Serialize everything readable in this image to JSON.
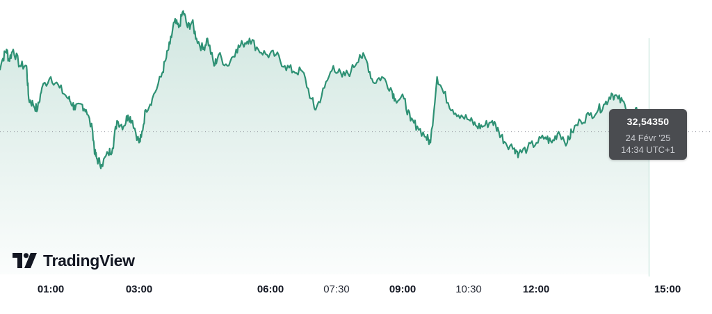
{
  "chart_data": {
    "type": "area",
    "x_ticks": [
      {
        "label": "01:00",
        "bold": true
      },
      {
        "label": "03:00",
        "bold": true
      },
      {
        "label": "06:00",
        "bold": true
      },
      {
        "label": "07:30",
        "bold": false
      },
      {
        "label": "09:00",
        "bold": true
      },
      {
        "label": "10:30",
        "bold": false
      },
      {
        "label": "12:00",
        "bold": true
      },
      {
        "label": "15:00",
        "bold": true
      }
    ],
    "x_range_hours": [
      -0.2,
      15.5
    ],
    "y_range": [
      32.32,
      32.57
    ],
    "reference_value": 32.45,
    "series": [
      {
        "color": "#2e9174",
        "points": [
          [
            -0.2,
            32.505
          ],
          [
            -0.1,
            32.515
          ],
          [
            0.0,
            32.525
          ],
          [
            0.05,
            32.515
          ],
          [
            0.15,
            32.525
          ],
          [
            0.3,
            32.51
          ],
          [
            0.45,
            32.51
          ],
          [
            0.5,
            32.48
          ],
          [
            0.6,
            32.475
          ],
          [
            0.7,
            32.47
          ],
          [
            0.8,
            32.49
          ],
          [
            1.0,
            32.5
          ],
          [
            1.2,
            32.49
          ],
          [
            1.4,
            32.48
          ],
          [
            1.5,
            32.475
          ],
          [
            1.55,
            32.47
          ],
          [
            1.7,
            32.475
          ],
          [
            1.8,
            32.47
          ],
          [
            1.95,
            32.45
          ],
          [
            2.0,
            32.43
          ],
          [
            2.05,
            32.425
          ],
          [
            2.15,
            32.42
          ],
          [
            2.3,
            32.43
          ],
          [
            2.4,
            32.435
          ],
          [
            2.5,
            32.46
          ],
          [
            2.65,
            32.455
          ],
          [
            2.75,
            32.465
          ],
          [
            2.85,
            32.46
          ],
          [
            3.0,
            32.44
          ],
          [
            3.05,
            32.445
          ],
          [
            3.15,
            32.47
          ],
          [
            3.3,
            32.48
          ],
          [
            3.5,
            32.5
          ],
          [
            3.6,
            32.515
          ],
          [
            3.7,
            32.53
          ],
          [
            3.8,
            32.55
          ],
          [
            3.9,
            32.545
          ],
          [
            4.0,
            32.56
          ],
          [
            4.1,
            32.545
          ],
          [
            4.2,
            32.55
          ],
          [
            4.3,
            32.535
          ],
          [
            4.45,
            32.525
          ],
          [
            4.55,
            32.535
          ],
          [
            4.7,
            32.51
          ],
          [
            4.8,
            32.52
          ],
          [
            5.0,
            32.51
          ],
          [
            5.2,
            32.525
          ],
          [
            5.35,
            32.53
          ],
          [
            5.5,
            32.535
          ],
          [
            5.7,
            32.525
          ],
          [
            5.9,
            32.52
          ],
          [
            6.1,
            32.52
          ],
          [
            6.3,
            32.51
          ],
          [
            6.5,
            32.505
          ],
          [
            6.7,
            32.505
          ],
          [
            6.9,
            32.48
          ],
          [
            7.0,
            32.47
          ],
          [
            7.2,
            32.49
          ],
          [
            7.4,
            32.51
          ],
          [
            7.6,
            32.5
          ],
          [
            7.8,
            32.505
          ],
          [
            8.0,
            32.52
          ],
          [
            8.15,
            32.515
          ],
          [
            8.3,
            32.495
          ],
          [
            8.5,
            32.5
          ],
          [
            8.7,
            32.49
          ],
          [
            8.8,
            32.48
          ],
          [
            9.0,
            32.48
          ],
          [
            9.15,
            32.46
          ],
          [
            9.3,
            32.455
          ],
          [
            9.5,
            32.445
          ],
          [
            9.6,
            32.44
          ],
          [
            9.75,
            32.5
          ],
          [
            9.9,
            32.485
          ],
          [
            10.1,
            32.47
          ],
          [
            10.3,
            32.465
          ],
          [
            10.5,
            32.46
          ],
          [
            10.65,
            32.455
          ],
          [
            10.8,
            32.455
          ],
          [
            11.0,
            32.46
          ],
          [
            11.15,
            32.45
          ],
          [
            11.3,
            32.44
          ],
          [
            11.5,
            32.435
          ],
          [
            11.6,
            32.43
          ],
          [
            11.8,
            32.435
          ],
          [
            12.0,
            32.44
          ],
          [
            12.2,
            32.445
          ],
          [
            12.35,
            32.44
          ],
          [
            12.5,
            32.45
          ],
          [
            12.7,
            32.44
          ],
          [
            12.8,
            32.45
          ],
          [
            13.0,
            32.46
          ],
          [
            13.2,
            32.465
          ],
          [
            13.4,
            32.47
          ],
          [
            13.55,
            32.475
          ],
          [
            13.7,
            32.485
          ],
          [
            13.85,
            32.48
          ],
          [
            14.0,
            32.475
          ],
          [
            14.2,
            32.465
          ],
          [
            14.3,
            32.47
          ],
          [
            14.45,
            32.4565
          ],
          [
            14.5,
            32.4565
          ],
          [
            14.55,
            32.46
          ]
        ],
        "last_value": 32.46
      }
    ],
    "tooltip": {
      "value": "32,54350",
      "date": "24 Févr '25",
      "time": "14:34 UTC+1"
    },
    "crosshair_hour": 14.55
  },
  "branding": {
    "logo_text": "TradingView",
    "logo_icon": "tradingview-logo-icon"
  }
}
